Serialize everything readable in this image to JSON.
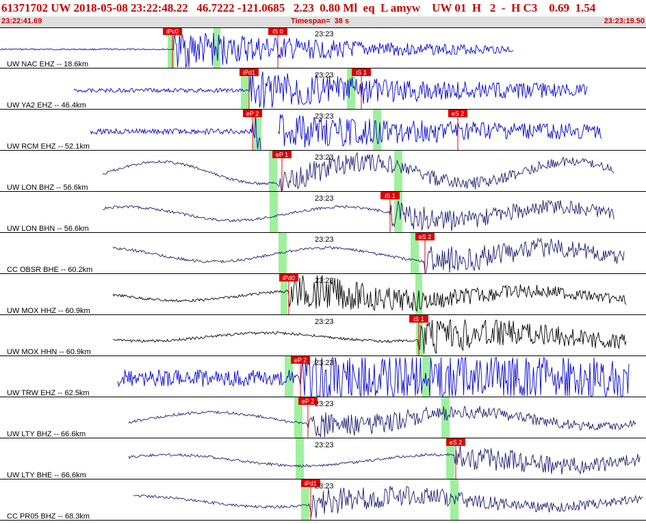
{
  "header": {
    "title": "61371702 UW 2018-05-08 23:22:48.22   46.7222 -121.0685   2.23  0.80 Ml  eq  L amyw    UW 01  H   2  -  H C3    0.69  1.54",
    "start_time": "23:22:41.69",
    "timespan": "Timespan=  38 s",
    "end_time": "23:23:19.50"
  },
  "colors": {
    "header_text": "#cc0000",
    "header_strip": "#dedede",
    "pick": "#dd0000",
    "window": "#9ef09e",
    "blue": "#0000cc",
    "navy": "#1a1a6e",
    "black": "#000000"
  },
  "traces": [
    {
      "label": "UW NAC EHZ -- 18.6km",
      "time_label": "23:23",
      "color": "blue",
      "picks": [
        {
          "label": "iPc0",
          "x": 238
        },
        {
          "label": "iS 0",
          "x": 392
        }
      ],
      "windows": [
        {
          "x": 245,
          "w": 10
        },
        {
          "x": 312,
          "w": 10
        }
      ],
      "extent": [
        0,
        750
      ],
      "onset": 255,
      "amp": 28,
      "start_amp": 1
    },
    {
      "label": "UW YA2 EHZ -- 46.4km",
      "time_label": "23:23",
      "color": "blue",
      "picks": [
        {
          "label": "iPd1",
          "x": 350
        },
        {
          "label": "iS 1",
          "x": 514
        }
      ],
      "windows": [
        {
          "x": 352,
          "w": 12
        },
        {
          "x": 507,
          "w": 12
        }
      ],
      "extent": [
        108,
        858
      ],
      "onset": 365,
      "amp": 26,
      "start_amp": 3
    },
    {
      "label": "UW RCM EHZ -- 52.1km",
      "time_label": "23:23",
      "color": "blue",
      "picks": [
        {
          "label": "eP 2",
          "x": 355
        },
        {
          "label": "eS 2",
          "x": 655
        }
      ],
      "windows": [
        {
          "x": 370,
          "w": 12
        },
        {
          "x": 545,
          "w": 12
        }
      ],
      "extent": [
        132,
        880
      ],
      "onset": 368,
      "amp": 22,
      "start_amp": 4,
      "gap": [
        382,
        408
      ]
    },
    {
      "label": "UW LON BHZ -- 56.6km",
      "time_label": "23:23",
      "color": "navy",
      "picks": [
        {
          "label": "eP 1",
          "x": 398
        }
      ],
      "windows": [
        {
          "x": 393,
          "w": 12
        },
        {
          "x": 576,
          "w": 12
        }
      ],
      "extent": [
        150,
        898
      ],
      "onset": 405,
      "amp": 18,
      "start_amp": 16,
      "wavy": true
    },
    {
      "label": "UW LON BHN -- 56.6km",
      "time_label": "23:23",
      "color": "navy",
      "picks": [
        {
          "label": "iS 1",
          "x": 556
        }
      ],
      "windows": [
        {
          "x": 394,
          "w": 12
        },
        {
          "x": 576,
          "w": 12
        }
      ],
      "extent": [
        150,
        898
      ],
      "onset": 570,
      "amp": 18,
      "start_amp": 10,
      "wavy": true
    },
    {
      "label": "CC OBSR BHE -- 60.2km",
      "time_label": "23:23",
      "color": "navy",
      "picks": [
        {
          "label": "eS 2",
          "x": 607
        }
      ],
      "windows": [
        {
          "x": 407,
          "w": 12
        },
        {
          "x": 600,
          "w": 12
        }
      ],
      "extent": [
        165,
        912
      ],
      "onset": 620,
      "amp": 22,
      "start_amp": 10,
      "wavy": true
    },
    {
      "label": "UW MOX HHZ -- 60.9km",
      "time_label": "23:23",
      "color": "black",
      "picks": [
        {
          "label": "iPd0",
          "x": 408
        }
      ],
      "windows": [
        {
          "x": 410,
          "w": 10
        },
        {
          "x": 607,
          "w": 10
        }
      ],
      "extent": [
        165,
        915
      ],
      "onset": 422,
      "amp": 26,
      "start_amp": 7,
      "wavy": true
    },
    {
      "label": "UW MOX HHN -- 60.9km",
      "time_label": "23:23",
      "color": "black",
      "picks": [
        {
          "label": "iS 1",
          "x": 598
        }
      ],
      "windows": [
        {
          "x": 608,
          "w": 10
        }
      ],
      "extent": [
        165,
        915
      ],
      "onset": 612,
      "amp": 26,
      "start_amp": 6,
      "wavy": true
    },
    {
      "label": "UW TRW EHZ -- 62.5km",
      "time_label": "23:23",
      "color": "blue",
      "picks": [
        {
          "label": "eP 2",
          "x": 425
        }
      ],
      "windows": [
        {
          "x": 416,
          "w": 12
        },
        {
          "x": 617,
          "w": 12
        }
      ],
      "extent": [
        172,
        920
      ],
      "onset": 440,
      "amp": 24,
      "start_amp": 13
    },
    {
      "label": "UW LTY BHZ -- 66.6km",
      "time_label": "23:23",
      "color": "navy",
      "picks": [
        {
          "label": "eP 2",
          "x": 436
        }
      ],
      "windows": [
        {
          "x": 430,
          "w": 12
        },
        {
          "x": 645,
          "w": 12
        }
      ],
      "extent": [
        188,
        930
      ],
      "onset": 450,
      "amp": 18,
      "start_amp": 10,
      "wavy": true
    },
    {
      "label": "UW LTY BHE -- 66.6km",
      "time_label": "23:23",
      "color": "navy",
      "picks": [
        {
          "label": "eS 2",
          "x": 652
        }
      ],
      "windows": [
        {
          "x": 432,
          "w": 12
        },
        {
          "x": 652,
          "w": 12
        }
      ],
      "extent": [
        188,
        935
      ],
      "onset": 665,
      "amp": 18,
      "start_amp": 8,
      "wavy": true
    },
    {
      "label": "CC PR05 BHZ -- 68.3km",
      "time_label": "23:23",
      "color": "navy",
      "picks": [
        {
          "label": "iPd1",
          "x": 440
        }
      ],
      "windows": [
        {
          "x": 440,
          "w": 12
        },
        {
          "x": 658,
          "w": 12
        }
      ],
      "extent": [
        195,
        940
      ],
      "onset": 452,
      "amp": 20,
      "start_amp": 8,
      "wavy": true
    }
  ]
}
